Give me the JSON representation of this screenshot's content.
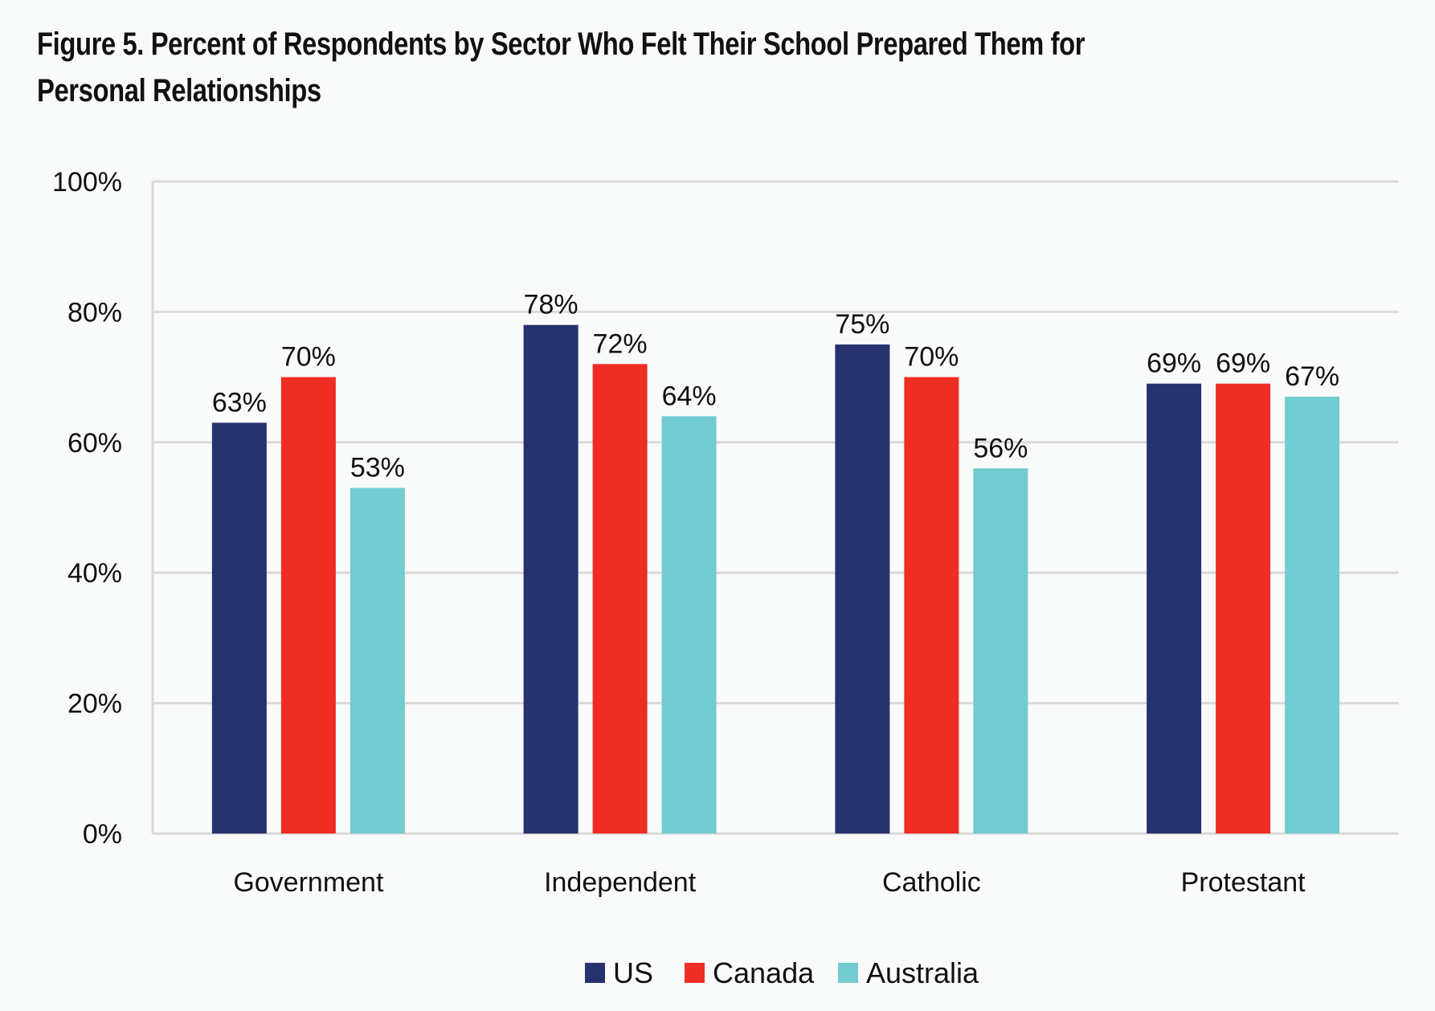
{
  "title_line1": "Figure 5. Percent of Respondents by Sector Who Felt Their School Prepared Them for",
  "title_line2": "Personal Relationships",
  "chart_data": {
    "type": "bar",
    "title": "Figure 5. Percent of Respondents by Sector Who Felt Their School Prepared Them for Personal Relationships",
    "xlabel": "",
    "ylabel": "",
    "categories": [
      "Government",
      "Independent",
      "Catholic",
      "Protestant"
    ],
    "series": [
      {
        "name": "US",
        "color": "#26326e",
        "values": [
          63,
          78,
          75,
          69
        ]
      },
      {
        "name": "Canada",
        "color": "#ee2d24",
        "values": [
          70,
          72,
          70,
          69
        ]
      },
      {
        "name": "Australia",
        "color": "#72cbd0",
        "values": [
          53,
          64,
          56,
          67
        ]
      }
    ],
    "ylim": [
      0,
      100
    ],
    "yticks": [
      0,
      20,
      40,
      60,
      80,
      100
    ],
    "ytick_labels": [
      "0%",
      "20%",
      "40%",
      "60%",
      "80%",
      "100%"
    ],
    "value_suffix": "%",
    "grid": true,
    "legend_position": "bottom-center"
  }
}
